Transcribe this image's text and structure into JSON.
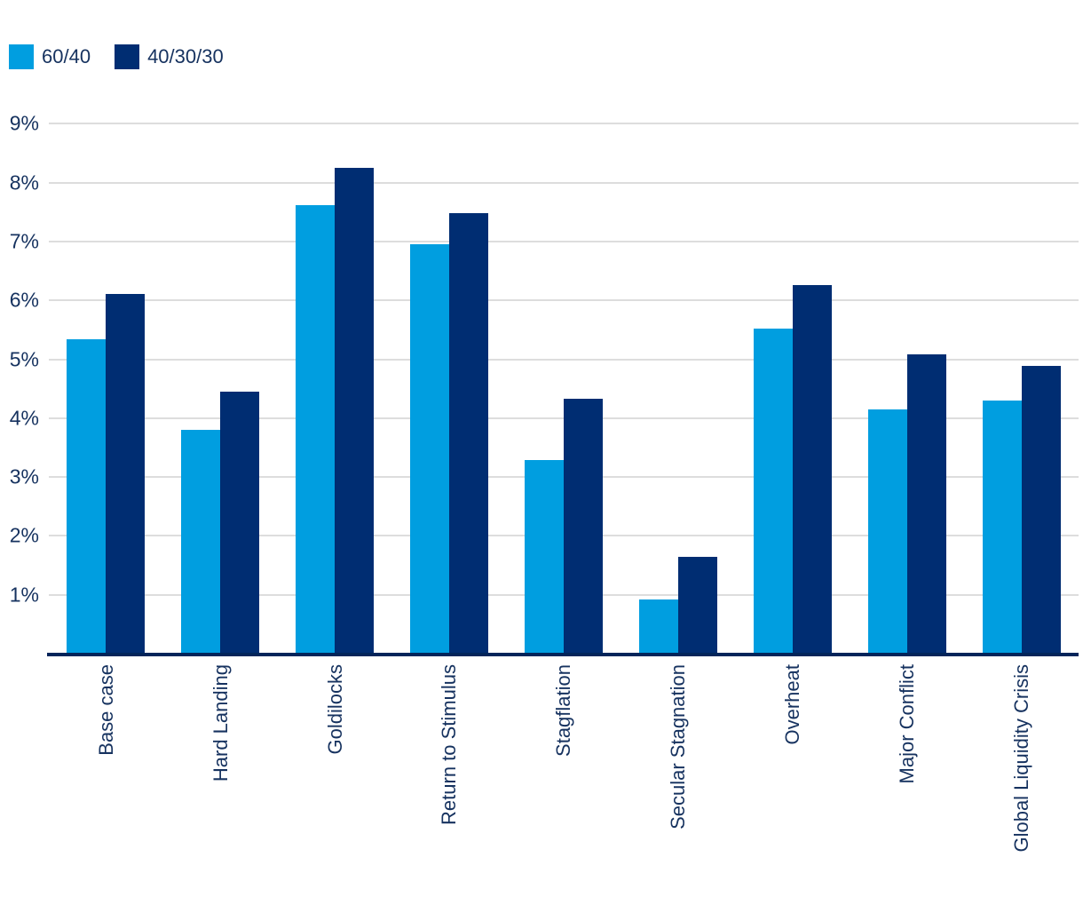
{
  "chart_data": {
    "type": "bar",
    "title": "",
    "xlabel": "",
    "ylabel": "",
    "categories": [
      "Base case",
      "Hard Landing",
      "Goldilocks",
      "Return to Stimulus",
      "Stagflation",
      "Secular Stagnation",
      "Overheat",
      "Major Conflict",
      "Global Liquidity Crisis"
    ],
    "series": [
      {
        "name": "60/40",
        "color": "#009EE0",
        "values": [
          5.33,
          3.78,
          7.6,
          6.94,
          3.27,
          0.9,
          5.5,
          4.14,
          4.28
        ]
      },
      {
        "name": "40/30/30",
        "color": "#002D72",
        "values": [
          6.09,
          4.43,
          8.23,
          7.47,
          4.32,
          1.63,
          6.25,
          5.07,
          4.88
        ]
      }
    ],
    "ylim": [
      0,
      9
    ],
    "ytick_labels": [
      "1%",
      "2%",
      "3%",
      "4%",
      "5%",
      "6%",
      "7%",
      "8%",
      "9%"
    ],
    "ytick_values": [
      1,
      2,
      3,
      4,
      5,
      6,
      7,
      8,
      9
    ],
    "grid": true,
    "legend_position": "top-left",
    "colors": {
      "text": "#16325F",
      "gridline": "#DDDDDD",
      "axis_line": "#02255A",
      "background": "#FFFFFF"
    }
  }
}
